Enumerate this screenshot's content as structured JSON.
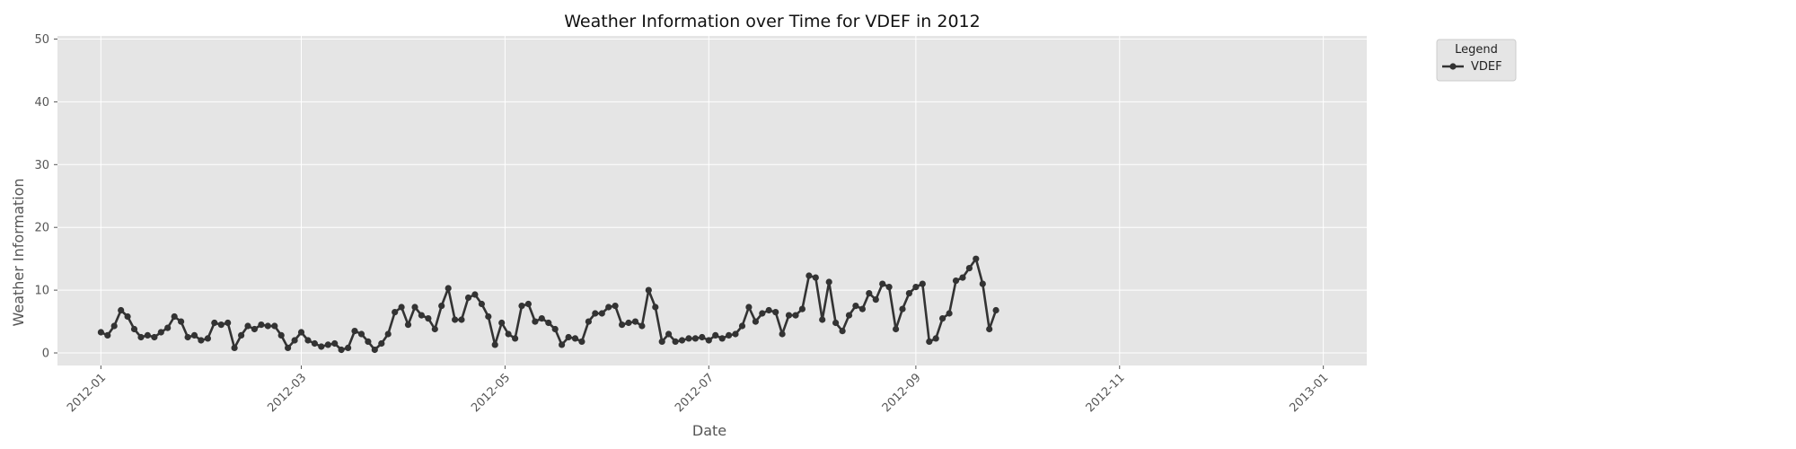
{
  "chart_data": {
    "type": "line",
    "title": "Weather Information over Time for VDEF in 2012",
    "xlabel": "Date",
    "ylabel": "Weather Information",
    "xlim": [
      "2011-12-19",
      "2013-01-14"
    ],
    "ylim": [
      -2,
      50.5
    ],
    "x_ticks": [
      "2012-01",
      "2012-03",
      "2012-05",
      "2012-07",
      "2012-09",
      "2012-11",
      "2013-01"
    ],
    "x_tick_dates": [
      "2012-01-01",
      "2012-03-01",
      "2012-05-01",
      "2012-07-01",
      "2012-09-01",
      "2012-11-01",
      "2013-01-01"
    ],
    "y_ticks": [
      0,
      10,
      20,
      30,
      40,
      50
    ],
    "grid": true,
    "legend": {
      "title": "Legend",
      "placement": "outside-top-right"
    },
    "colors": {
      "line": "#333333",
      "plot_bg": "#e5e5e5",
      "grid": "#ffffff"
    },
    "series": [
      {
        "name": "VDEF",
        "points": [
          [
            "2012-01-01",
            3.3
          ],
          [
            "2012-01-03",
            2.8
          ],
          [
            "2012-01-05",
            4.3
          ],
          [
            "2012-01-07",
            6.8
          ],
          [
            "2012-01-09",
            5.8
          ],
          [
            "2012-01-11",
            3.8
          ],
          [
            "2012-01-13",
            2.5
          ],
          [
            "2012-01-15",
            2.8
          ],
          [
            "2012-01-17",
            2.5
          ],
          [
            "2012-01-19",
            3.3
          ],
          [
            "2012-01-21",
            4.0
          ],
          [
            "2012-01-23",
            5.8
          ],
          [
            "2012-01-25",
            5.0
          ],
          [
            "2012-01-27",
            2.5
          ],
          [
            "2012-01-29",
            2.8
          ],
          [
            "2012-01-31",
            2.0
          ],
          [
            "2012-02-02",
            2.3
          ],
          [
            "2012-02-04",
            4.8
          ],
          [
            "2012-02-06",
            4.5
          ],
          [
            "2012-02-08",
            4.8
          ],
          [
            "2012-02-10",
            0.8
          ],
          [
            "2012-02-12",
            2.8
          ],
          [
            "2012-02-14",
            4.3
          ],
          [
            "2012-02-16",
            3.8
          ],
          [
            "2012-02-18",
            4.5
          ],
          [
            "2012-02-20",
            4.3
          ],
          [
            "2012-02-22",
            4.3
          ],
          [
            "2012-02-24",
            2.8
          ],
          [
            "2012-02-26",
            0.8
          ],
          [
            "2012-02-28",
            2.0
          ],
          [
            "2012-03-01",
            3.3
          ],
          [
            "2012-03-03",
            2.0
          ],
          [
            "2012-03-05",
            1.5
          ],
          [
            "2012-03-07",
            1.0
          ],
          [
            "2012-03-09",
            1.3
          ],
          [
            "2012-03-11",
            1.5
          ],
          [
            "2012-03-13",
            0.5
          ],
          [
            "2012-03-15",
            0.8
          ],
          [
            "2012-03-17",
            3.5
          ],
          [
            "2012-03-19",
            3.0
          ],
          [
            "2012-03-21",
            1.8
          ],
          [
            "2012-03-23",
            0.5
          ],
          [
            "2012-03-25",
            1.5
          ],
          [
            "2012-03-27",
            3.0
          ],
          [
            "2012-03-29",
            6.5
          ],
          [
            "2012-03-31",
            7.3
          ],
          [
            "2012-04-02",
            4.5
          ],
          [
            "2012-04-04",
            7.3
          ],
          [
            "2012-04-06",
            6.0
          ],
          [
            "2012-04-08",
            5.5
          ],
          [
            "2012-04-10",
            3.8
          ],
          [
            "2012-04-12",
            7.5
          ],
          [
            "2012-04-14",
            10.3
          ],
          [
            "2012-04-16",
            5.3
          ],
          [
            "2012-04-18",
            5.3
          ],
          [
            "2012-04-20",
            8.8
          ],
          [
            "2012-04-22",
            9.3
          ],
          [
            "2012-04-24",
            7.8
          ],
          [
            "2012-04-26",
            5.8
          ],
          [
            "2012-04-28",
            1.3
          ],
          [
            "2012-04-30",
            4.8
          ],
          [
            "2012-05-02",
            3.0
          ],
          [
            "2012-05-04",
            2.3
          ],
          [
            "2012-05-06",
            7.5
          ],
          [
            "2012-05-08",
            7.8
          ],
          [
            "2012-05-10",
            5.0
          ],
          [
            "2012-05-12",
            5.5
          ],
          [
            "2012-05-14",
            4.8
          ],
          [
            "2012-05-16",
            3.8
          ],
          [
            "2012-05-18",
            1.3
          ],
          [
            "2012-05-20",
            2.5
          ],
          [
            "2012-05-22",
            2.3
          ],
          [
            "2012-05-24",
            1.8
          ],
          [
            "2012-05-26",
            5.0
          ],
          [
            "2012-05-28",
            6.3
          ],
          [
            "2012-05-30",
            6.3
          ],
          [
            "2012-06-01",
            7.3
          ],
          [
            "2012-06-03",
            7.5
          ],
          [
            "2012-06-05",
            4.5
          ],
          [
            "2012-06-07",
            4.8
          ],
          [
            "2012-06-09",
            5.0
          ],
          [
            "2012-06-11",
            4.3
          ],
          [
            "2012-06-13",
            10.0
          ],
          [
            "2012-06-15",
            7.3
          ],
          [
            "2012-06-17",
            1.8
          ],
          [
            "2012-06-19",
            3.0
          ],
          [
            "2012-06-21",
            1.8
          ],
          [
            "2012-06-23",
            2.0
          ],
          [
            "2012-06-25",
            2.3
          ],
          [
            "2012-06-27",
            2.3
          ],
          [
            "2012-06-29",
            2.5
          ],
          [
            "2012-07-01",
            2.0
          ],
          [
            "2012-07-03",
            2.8
          ],
          [
            "2012-07-05",
            2.3
          ],
          [
            "2012-07-07",
            2.8
          ],
          [
            "2012-07-09",
            3.0
          ],
          [
            "2012-07-11",
            4.3
          ],
          [
            "2012-07-13",
            7.3
          ],
          [
            "2012-07-15",
            5.0
          ],
          [
            "2012-07-17",
            6.3
          ],
          [
            "2012-07-19",
            6.8
          ],
          [
            "2012-07-21",
            6.5
          ],
          [
            "2012-07-23",
            3.0
          ],
          [
            "2012-07-25",
            6.0
          ],
          [
            "2012-07-27",
            6.0
          ],
          [
            "2012-07-29",
            7.0
          ],
          [
            "2012-07-31",
            12.3
          ],
          [
            "2012-08-02",
            12.0
          ],
          [
            "2012-08-04",
            5.3
          ],
          [
            "2012-08-06",
            11.3
          ],
          [
            "2012-08-08",
            4.8
          ],
          [
            "2012-08-10",
            3.5
          ],
          [
            "2012-08-12",
            6.0
          ],
          [
            "2012-08-14",
            7.5
          ],
          [
            "2012-08-16",
            7.0
          ],
          [
            "2012-08-18",
            9.5
          ],
          [
            "2012-08-20",
            8.5
          ],
          [
            "2012-08-22",
            11.0
          ],
          [
            "2012-08-24",
            10.5
          ],
          [
            "2012-08-26",
            3.8
          ],
          [
            "2012-08-28",
            7.0
          ],
          [
            "2012-08-30",
            9.5
          ],
          [
            "2012-09-01",
            10.5
          ],
          [
            "2012-09-03",
            11.0
          ],
          [
            "2012-09-05",
            1.8
          ],
          [
            "2012-09-07",
            2.3
          ],
          [
            "2012-09-09",
            5.5
          ],
          [
            "2012-09-11",
            6.3
          ],
          [
            "2012-09-13",
            11.5
          ],
          [
            "2012-09-15",
            12.0
          ],
          [
            "2012-09-17",
            13.5
          ],
          [
            "2012-09-19",
            15.0
          ],
          [
            "2012-09-21",
            11.0
          ],
          [
            "2012-09-23",
            3.8
          ],
          [
            "2012-09-25",
            6.8
          ]
        ]
      }
    ]
  }
}
